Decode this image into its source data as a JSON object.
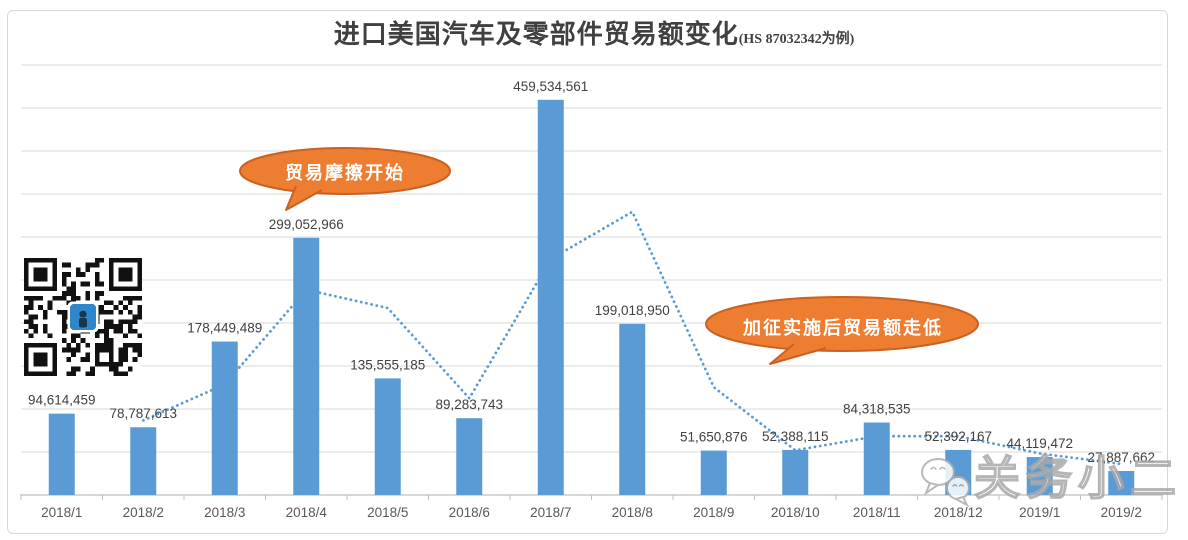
{
  "chart_data": {
    "type": "bar",
    "title": "进口美国汽车及零部件贸易额变化",
    "title_suffix": "(HS 87032342为例)",
    "categories": [
      "2018/1",
      "2018/2",
      "2018/3",
      "2018/4",
      "2018/5",
      "2018/6",
      "2018/7",
      "2018/8",
      "2018/9",
      "2018/10",
      "2018/11",
      "2018/12",
      "2019/1",
      "2019/2"
    ],
    "values": [
      94614459,
      78787613,
      178449489,
      299052966,
      135555185,
      89283743,
      459534561,
      199018950,
      51650876,
      52388115,
      84318535,
      52392167,
      44119472,
      27887662
    ],
    "value_labels": [
      "94,614,459",
      "78,787,613",
      "178,449,489",
      "299,052,966",
      "135,555,185",
      "89,283,743",
      "459,534,561",
      "199,018,950",
      "51,650,876",
      "52,388,115",
      "84,318,535",
      "52,392,167",
      "44,119,472",
      "27,887,662"
    ],
    "trendline": {
      "type": "moving_average_2_period",
      "style": "dotted",
      "values": [
        null,
        86701036,
        128618551,
        238751228,
        217304076,
        112419464,
        274409152,
        329276756,
        125334913,
        52019496,
        68353325,
        68355351,
        48255820,
        36003567
      ]
    },
    "annotations": [
      {
        "text": "贸易摩擦开始",
        "shape": "oval-callout"
      },
      {
        "text": "加征实施后贸易额走低",
        "shape": "oval-callout"
      }
    ],
    "xlabel": "",
    "ylabel": "",
    "ylim": [
      0,
      500000000
    ],
    "gridline_step": 50000000,
    "grid": true,
    "legend": "none",
    "colors": {
      "bar": "#5b9bd5",
      "trendline": "#5b9bd5",
      "gridline": "#d9d9d9",
      "axis": "#bfbfbf",
      "value_label": "#404040",
      "tick_label": "#595959",
      "callout_fill": "#ed7d31",
      "callout_border": "#cb6120",
      "callout_text": "#ffffff"
    }
  },
  "watermark": {
    "text": "关务小二",
    "icon": "wechat-icon"
  },
  "qr_code": {
    "description": "qr-code-with-blue-logo"
  }
}
